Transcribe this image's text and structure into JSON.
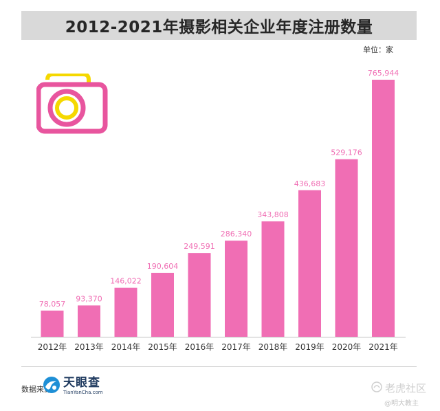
{
  "title": "2012-2021年摄影相关企业年度注册数量",
  "unit_label": "单位：家",
  "source_label": "数据来源：",
  "logo": {
    "name_cn": "天眼查",
    "name_en": "TianYanCha.com"
  },
  "watermark": {
    "text": "老虎社区",
    "sub": "@明大教主"
  },
  "colors": {
    "bar": "#f06eb4",
    "value_label": "#f06eb4",
    "camera_body": "#e8559e",
    "camera_lens": "#f5d800",
    "title_bg": "#d9d9d9"
  },
  "icons": [
    "camera-icon",
    "tianyancha-logo-icon",
    "tiger-community-icon"
  ],
  "chart_data": {
    "type": "bar",
    "title": "2012-2021年摄影相关企业年度注册数量",
    "categories": [
      "2012年",
      "2013年",
      "2014年",
      "2015年",
      "2016年",
      "2017年",
      "2018年",
      "2019年",
      "2020年",
      "2021年"
    ],
    "values": [
      78057,
      93370,
      146022,
      190604,
      249591,
      286340,
      343808,
      436683,
      529176,
      765944
    ],
    "value_labels": [
      "78,057",
      "93,370",
      "146,022",
      "190,604",
      "249,591",
      "286,340",
      "343,808",
      "436,683",
      "529,176",
      "765,944"
    ],
    "ylabel": "单位：家",
    "ylim": [
      0,
      765944
    ],
    "grid": false,
    "legend": "none"
  }
}
